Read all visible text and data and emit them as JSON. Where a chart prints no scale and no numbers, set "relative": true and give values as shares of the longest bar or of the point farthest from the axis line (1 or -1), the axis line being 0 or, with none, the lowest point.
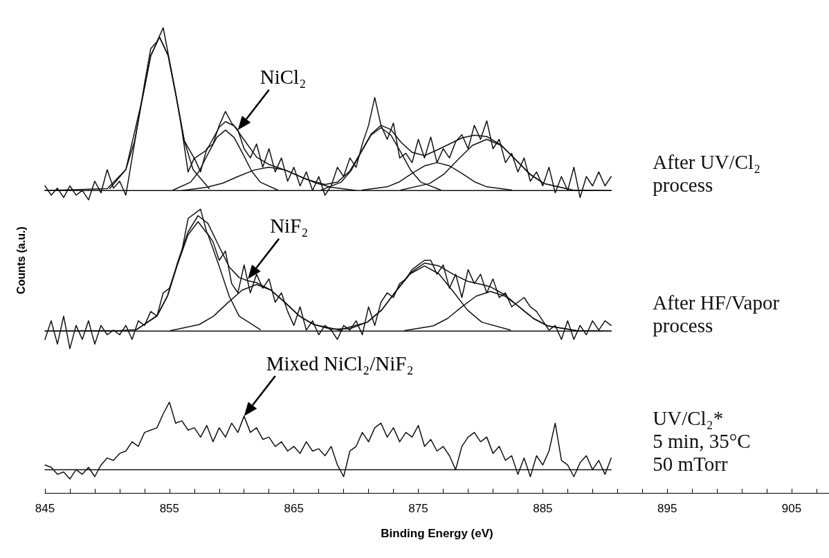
{
  "chart_data": {
    "type": "line",
    "relative": true,
    "xlabel": "Binding Energy (eV)",
    "ylabel": "Counts (a.u.)",
    "xlim": [
      845,
      908
    ],
    "xticks": [
      845,
      {
        "value": 847,
        "label": null
      },
      {
        "value": 849,
        "label": null
      },
      {
        "value": 851,
        "label": null
      },
      {
        "value": 853,
        "label": null
      },
      855,
      {
        "value": 857,
        "label": null
      },
      {
        "value": 859,
        "label": null
      },
      {
        "value": 861,
        "label": null
      },
      {
        "value": 863,
        "label": null
      },
      865,
      {
        "value": 867,
        "label": null
      },
      {
        "value": 869,
        "label": null
      },
      {
        "value": 871,
        "label": null
      },
      {
        "value": 873,
        "label": null
      },
      875,
      {
        "value": 877,
        "label": null
      },
      {
        "value": 879,
        "label": null
      },
      {
        "value": 881,
        "label": null
      },
      {
        "value": 883,
        "label": null
      },
      885,
      {
        "value": 887,
        "label": null
      },
      {
        "value": 889,
        "label": null
      },
      {
        "value": 891,
        "label": null
      },
      {
        "value": 893,
        "label": null
      },
      895,
      {
        "value": 897,
        "label": null
      },
      {
        "value": 899,
        "label": null
      },
      {
        "value": 901,
        "label": null
      },
      {
        "value": 903,
        "label": null
      },
      905,
      {
        "value": 907,
        "label": null
      }
    ],
    "grid": false,
    "legend": false,
    "marker": "none",
    "line_style": "solid",
    "annotations": [
      {
        "text": "NiCl₂",
        "x": 860.5,
        "y": 0.78
      },
      {
        "text": "NiF₂",
        "x": 861.3,
        "y": 0.46
      },
      {
        "text": "Mixed NiCl₂/NiF₂",
        "x": 861,
        "y": 0.165
      }
    ],
    "series": [
      {
        "name": "After UV/Cl₂\nprocess",
        "color": "#111111",
        "x": [
          845,
          845.5,
          846,
          846.5,
          847,
          847.5,
          848,
          848.5,
          849,
          849.5,
          850,
          850.5,
          851,
          851.5,
          852,
          852.5,
          853,
          853.5,
          854,
          854.5,
          855,
          855.5,
          856,
          856.5,
          857,
          857.5,
          858,
          858.5,
          859,
          859.5,
          860,
          860.5,
          861,
          861.5,
          862,
          862.5,
          863,
          863.5,
          864,
          864.5,
          865,
          865.5,
          866,
          866.5,
          867,
          867.5,
          868,
          868.5,
          869,
          869.5,
          870,
          870.5,
          871,
          871.5,
          872,
          872.5,
          873,
          873.5,
          874,
          874.5,
          875,
          875.5,
          876,
          876.5,
          877,
          877.5,
          878,
          878.5,
          879,
          879.5,
          880,
          880.5,
          881,
          881.5,
          882,
          882.5,
          883,
          883.5,
          884,
          884.5,
          885,
          885.5,
          886,
          886.5,
          887,
          887.5,
          888,
          888.5,
          889,
          889.5,
          890,
          890.5
        ],
        "values": [
          0.66,
          0.64,
          0.655,
          0.635,
          0.66,
          0.64,
          0.65,
          0.63,
          0.67,
          0.645,
          0.695,
          0.655,
          0.67,
          0.64,
          0.72,
          0.8,
          0.88,
          0.955,
          0.97,
          1.0,
          0.93,
          0.86,
          0.78,
          0.69,
          0.72,
          0.69,
          0.74,
          0.75,
          0.79,
          0.82,
          0.795,
          0.78,
          0.74,
          0.72,
          0.75,
          0.7,
          0.74,
          0.69,
          0.72,
          0.67,
          0.7,
          0.66,
          0.69,
          0.65,
          0.68,
          0.64,
          0.66,
          0.7,
          0.68,
          0.72,
          0.7,
          0.75,
          0.79,
          0.85,
          0.79,
          0.76,
          0.795,
          0.72,
          0.73,
          0.71,
          0.76,
          0.72,
          0.765,
          0.71,
          0.74,
          0.72,
          0.755,
          0.77,
          0.74,
          0.79,
          0.76,
          0.8,
          0.74,
          0.76,
          0.71,
          0.73,
          0.69,
          0.72,
          0.67,
          0.69,
          0.66,
          0.7,
          0.645,
          0.68,
          0.65,
          0.7,
          0.635,
          0.68,
          0.66,
          0.69,
          0.66,
          0.68
        ]
      },
      {
        "color": "#111111",
        "x": [
          845,
          850,
          851.5,
          852.85,
          853.5,
          854.2,
          854.9,
          855.55,
          856.2,
          857,
          858,
          859,
          859.5,
          860.2,
          861,
          862,
          863,
          864.5,
          866,
          867.5,
          868.5,
          869.5,
          870.5,
          871.2,
          872,
          872.8,
          873.6,
          874.5,
          875.5,
          876.5,
          877.5,
          878.5,
          879.5,
          880.5,
          881.65,
          882.8,
          884,
          885.1,
          887.4,
          890.5
        ],
        "values": [
          0.65,
          0.654,
          0.695,
          0.851,
          0.94,
          0.98,
          0.94,
          0.851,
          0.757,
          0.719,
          0.737,
          0.786,
          0.798,
          0.789,
          0.759,
          0.722,
          0.706,
          0.692,
          0.674,
          0.663,
          0.668,
          0.692,
          0.738,
          0.771,
          0.79,
          0.781,
          0.754,
          0.732,
          0.725,
          0.737,
          0.75,
          0.763,
          0.769,
          0.766,
          0.748,
          0.717,
          0.685,
          0.665,
          0.651,
          0.65
        ]
      },
      {
        "color": "#111111",
        "x": [
          850.2,
          851.5,
          852.2,
          852.85,
          853.5,
          854.2,
          854.9,
          855.55,
          856.2,
          856.9,
          858.2
        ],
        "values": [
          0.654,
          0.695,
          0.756,
          0.851,
          0.94,
          0.98,
          0.94,
          0.851,
          0.756,
          0.695,
          0.654
        ]
      },
      {
        "color": "#111111",
        "x": [
          855.3,
          856.7,
          857.4,
          858.1,
          858.8,
          859.5,
          860.2,
          860.9,
          861.6,
          862.3,
          863.7
        ],
        "values": [
          0.651,
          0.668,
          0.692,
          0.729,
          0.764,
          0.78,
          0.764,
          0.729,
          0.692,
          0.668,
          0.651
        ]
      },
      {
        "color": "#111111",
        "x": [
          856,
          858,
          859.3,
          860.5,
          861.8,
          863,
          864.3,
          865.5,
          866.8,
          868,
          870
        ],
        "values": [
          0.65,
          0.657,
          0.666,
          0.68,
          0.694,
          0.7,
          0.694,
          0.68,
          0.666,
          0.657,
          0.65
        ]
      },
      {
        "color": "#111111",
        "x": [
          867.2,
          868.8,
          869.6,
          870.4,
          871.2,
          872,
          872.8,
          873.6,
          874.4,
          875.2,
          876.8
        ],
        "values": [
          0.651,
          0.668,
          0.693,
          0.732,
          0.769,
          0.785,
          0.769,
          0.732,
          0.693,
          0.668,
          0.651
        ]
      },
      {
        "color": "#111111",
        "x": [
          870.5,
          872.5,
          873.5,
          874.5,
          875.5,
          876.5,
          877.5,
          878.5,
          879.5,
          880.5,
          882.5
        ],
        "values": [
          0.651,
          0.658,
          0.669,
          0.687,
          0.703,
          0.71,
          0.703,
          0.687,
          0.669,
          0.658,
          0.651
        ]
      },
      {
        "color": "#111111",
        "x": [
          873.6,
          875.9,
          877.05,
          878.2,
          879.35,
          880.5,
          881.65,
          882.8,
          883.95,
          885.1,
          887.4
        ],
        "values": [
          0.651,
          0.665,
          0.685,
          0.717,
          0.747,
          0.76,
          0.747,
          0.717,
          0.685,
          0.665,
          0.651
        ]
      },
      {
        "color": "#111111",
        "x": [
          845,
          890.5
        ],
        "values": [
          0.65,
          0.65
        ]
      },
      {
        "name": "After HF/Vapor\nprocess",
        "color": "#111111",
        "x": [
          845,
          845.5,
          846,
          846.5,
          847,
          847.5,
          848,
          848.5,
          849,
          849.5,
          850,
          850.5,
          851,
          851.5,
          852,
          852.5,
          853,
          853.5,
          854,
          854.5,
          855,
          855.5,
          856,
          856.5,
          857,
          857.5,
          858,
          858.5,
          859,
          859.5,
          860,
          860.5,
          861,
          861.5,
          862,
          862.5,
          863,
          863.5,
          864,
          864.5,
          865,
          865.5,
          866,
          866.5,
          867,
          867.5,
          868,
          868.5,
          869,
          869.5,
          870,
          870.5,
          871,
          871.5,
          872,
          872.5,
          873,
          873.5,
          874,
          874.5,
          875,
          875.5,
          876,
          876.5,
          877,
          877.5,
          878,
          878.5,
          879,
          879.5,
          880,
          880.5,
          881,
          881.5,
          882,
          882.5,
          883,
          883.5,
          884,
          884.5,
          885,
          885.5,
          886,
          886.5,
          887,
          887.5,
          888,
          888.5,
          889,
          889.5,
          890,
          890.5
        ],
        "values": [
          0.33,
          0.37,
          0.32,
          0.38,
          0.31,
          0.36,
          0.33,
          0.37,
          0.32,
          0.36,
          0.34,
          0.35,
          0.34,
          0.36,
          0.33,
          0.37,
          0.36,
          0.39,
          0.38,
          0.43,
          0.44,
          0.48,
          0.52,
          0.59,
          0.6,
          0.61,
          0.56,
          0.54,
          0.5,
          0.52,
          0.45,
          0.43,
          0.49,
          0.43,
          0.47,
          0.44,
          0.46,
          0.41,
          0.43,
          0.39,
          0.36,
          0.4,
          0.35,
          0.37,
          0.34,
          0.36,
          0.35,
          0.33,
          0.36,
          0.35,
          0.37,
          0.34,
          0.4,
          0.36,
          0.41,
          0.43,
          0.42,
          0.45,
          0.46,
          0.48,
          0.49,
          0.5,
          0.5,
          0.47,
          0.49,
          0.44,
          0.47,
          0.42,
          0.48,
          0.45,
          0.47,
          0.43,
          0.46,
          0.42,
          0.43,
          0.4,
          0.41,
          0.42,
          0.4,
          0.39,
          0.37,
          0.35,
          0.36,
          0.33,
          0.37,
          0.33,
          0.36,
          0.34,
          0.37,
          0.35,
          0.37,
          0.36
        ]
      },
      {
        "color": "#111111",
        "x": [
          845,
          851,
          852.35,
          854,
          854.85,
          855.65,
          856.5,
          857.3,
          858.1,
          858.95,
          859.8,
          860.6,
          861.3,
          862,
          863.15,
          864.3,
          865.45,
          866.6,
          868,
          869.5,
          870.9,
          872.05,
          873.2,
          874.35,
          875.5,
          876.65,
          877.8,
          878.95,
          880.1,
          880.8,
          881.95,
          883.1,
          884.25,
          885.4,
          887.7,
          890.5
        ],
        "values": [
          0.348,
          0.349,
          0.351,
          0.381,
          0.424,
          0.495,
          0.561,
          0.596,
          0.579,
          0.532,
          0.486,
          0.463,
          0.456,
          0.452,
          0.436,
          0.409,
          0.38,
          0.362,
          0.352,
          0.353,
          0.367,
          0.393,
          0.434,
          0.473,
          0.494,
          0.488,
          0.47,
          0.455,
          0.448,
          0.443,
          0.426,
          0.4,
          0.375,
          0.359,
          0.349,
          0.348
        ]
      },
      {
        "color": "#111111",
        "x": [
          852.35,
          854,
          854.85,
          855.65,
          856.5,
          857.3,
          858.1,
          858.95,
          859.8,
          860.6,
          862.3
        ],
        "values": [
          0.351,
          0.38,
          0.423,
          0.491,
          0.555,
          0.583,
          0.555,
          0.491,
          0.423,
          0.38,
          0.351
        ]
      },
      {
        "color": "#111111",
        "x": [
          855.1,
          857.4,
          858.55,
          859.7,
          860.85,
          862,
          863.15,
          864.3,
          865.45,
          866.6,
          868.9
        ],
        "values": [
          0.349,
          0.362,
          0.38,
          0.409,
          0.436,
          0.448,
          0.436,
          0.409,
          0.38,
          0.362,
          0.349
        ]
      },
      {
        "color": "#111111",
        "x": [
          868.6,
          870.9,
          872.05,
          873.2,
          874.35,
          875.5,
          876.65,
          877.8,
          878.95,
          880.1,
          882.4
        ],
        "values": [
          0.35,
          0.367,
          0.393,
          0.433,
          0.471,
          0.488,
          0.471,
          0.433,
          0.393,
          0.367,
          0.35
        ]
      },
      {
        "color": "#111111",
        "x": [
          873.9,
          876.2,
          877.35,
          878.5,
          879.65,
          880.8,
          881.95,
          883.1,
          884.25,
          885.4,
          887.7
        ],
        "values": [
          0.349,
          0.359,
          0.375,
          0.4,
          0.423,
          0.433,
          0.423,
          0.4,
          0.375,
          0.359,
          0.349
        ]
      },
      {
        "color": "#111111",
        "x": [
          845,
          890.5
        ],
        "values": [
          0.348,
          0.348
        ]
      },
      {
        "name": "UV/Cl₂*\n5 min, 35°C\n50 mTorr",
        "color": "#111111",
        "x": [
          845,
          845.5,
          846,
          846.5,
          847,
          847.5,
          848,
          848.5,
          849,
          849.5,
          850,
          850.5,
          851,
          851.5,
          852,
          852.5,
          853,
          853.5,
          854,
          854.5,
          855,
          855.5,
          856,
          856.5,
          857,
          857.5,
          858,
          858.5,
          859,
          859.5,
          860,
          860.5,
          861,
          861.5,
          862,
          862.5,
          863,
          863.5,
          864,
          864.5,
          865,
          865.5,
          866,
          866.5,
          867,
          867.5,
          868,
          868.5,
          869,
          869.5,
          870,
          870.5,
          871,
          871.5,
          872,
          872.5,
          873,
          873.5,
          874,
          874.5,
          875,
          875.5,
          876,
          876.5,
          877,
          877.5,
          878,
          878.5,
          879,
          879.5,
          880,
          880.5,
          881,
          881.5,
          882,
          882.5,
          883,
          883.5,
          884,
          884.5,
          885,
          885.5,
          886,
          886.5,
          887,
          887.5,
          888,
          888.5,
          889,
          889.5,
          890,
          890.5
        ],
        "values": [
          0.06,
          0.055,
          0.04,
          0.045,
          0.03,
          0.05,
          0.04,
          0.055,
          0.035,
          0.06,
          0.075,
          0.07,
          0.085,
          0.09,
          0.11,
          0.1,
          0.13,
          0.135,
          0.14,
          0.17,
          0.195,
          0.15,
          0.155,
          0.135,
          0.14,
          0.12,
          0.145,
          0.11,
          0.14,
          0.12,
          0.15,
          0.13,
          0.165,
          0.13,
          0.14,
          0.115,
          0.12,
          0.1,
          0.11,
          0.09,
          0.1,
          0.085,
          0.11,
          0.09,
          0.095,
          0.08,
          0.1,
          0.06,
          0.035,
          0.09,
          0.1,
          0.13,
          0.11,
          0.14,
          0.15,
          0.12,
          0.14,
          0.11,
          0.13,
          0.12,
          0.145,
          0.1,
          0.115,
          0.09,
          0.1,
          0.08,
          0.05,
          0.1,
          0.12,
          0.13,
          0.11,
          0.12,
          0.085,
          0.1,
          0.07,
          0.08,
          0.04,
          0.075,
          0.035,
          0.08,
          0.06,
          0.09,
          0.15,
          0.07,
          0.06,
          0.035,
          0.065,
          0.08,
          0.05,
          0.07,
          0.04,
          0.075
        ]
      },
      {
        "color": "#111111",
        "x": [
          845,
          890.5
        ],
        "values": [
          0.05,
          0.05
        ]
      }
    ]
  }
}
